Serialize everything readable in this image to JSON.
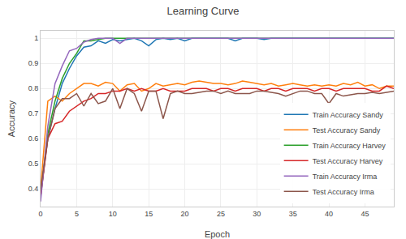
{
  "chart_data": {
    "type": "line",
    "title": "Learning Curve",
    "x_label": "Epoch",
    "y_label": "Accuracy",
    "x": [
      0,
      1,
      2,
      3,
      4,
      5,
      6,
      7,
      8,
      9,
      10,
      11,
      12,
      13,
      14,
      15,
      16,
      17,
      18,
      19,
      20,
      21,
      22,
      23,
      24,
      25,
      26,
      27,
      28,
      29,
      30,
      31,
      32,
      33,
      34,
      35,
      36,
      37,
      38,
      39,
      40,
      41,
      42,
      43,
      44,
      45,
      46,
      47,
      48,
      49
    ],
    "xlim": [
      0,
      49
    ],
    "xticks": [
      0,
      5,
      10,
      15,
      20,
      25,
      30,
      35,
      40,
      45
    ],
    "ylim": [
      0.33,
      1.03
    ],
    "yticks": [
      0.4,
      0.5,
      0.6,
      0.7,
      0.8,
      0.9,
      1
    ],
    "grid": true,
    "legend": "lower right",
    "series": [
      {
        "name": "Train Accuracy Sandy",
        "color": "#1f77b4",
        "values": [
          0.38,
          0.6,
          0.72,
          0.82,
          0.88,
          0.93,
          0.965,
          0.97,
          0.99,
          0.98,
          0.995,
          0.99,
          0.995,
          1,
          0.99,
          0.97,
          0.995,
          1,
          0.995,
          1,
          0.99,
          1,
          1,
          1,
          1,
          1,
          1,
          0.99,
          1,
          1,
          1,
          0.995,
          1,
          1,
          1,
          1,
          1,
          1,
          1,
          1,
          1,
          1,
          1,
          1,
          1,
          1,
          1,
          1,
          1,
          1
        ]
      },
      {
        "name": "Test Accuracy Sandy",
        "color": "#ff7f0e",
        "values": [
          0.4,
          0.75,
          0.77,
          0.75,
          0.78,
          0.8,
          0.82,
          0.82,
          0.81,
          0.825,
          0.82,
          0.79,
          0.815,
          0.82,
          0.79,
          0.8,
          0.82,
          0.81,
          0.815,
          0.82,
          0.815,
          0.825,
          0.83,
          0.825,
          0.82,
          0.82,
          0.815,
          0.82,
          0.83,
          0.825,
          0.82,
          0.815,
          0.82,
          0.81,
          0.815,
          0.82,
          0.815,
          0.81,
          0.815,
          0.81,
          0.815,
          0.81,
          0.82,
          0.815,
          0.825,
          0.81,
          0.815,
          0.8,
          0.81,
          0.81
        ]
      },
      {
        "name": "Train Accuracy Harvey",
        "color": "#2ca02c",
        "values": [
          0.37,
          0.62,
          0.75,
          0.84,
          0.9,
          0.94,
          0.99,
          0.99,
          0.995,
          1,
          1,
          1,
          1,
          1,
          1,
          1,
          1,
          1,
          1,
          1,
          1,
          1,
          1,
          1,
          1,
          1,
          1,
          1,
          1,
          1,
          1,
          1,
          1,
          1,
          1,
          1,
          1,
          1,
          1,
          1,
          1,
          1,
          1,
          1,
          1,
          1,
          1,
          1,
          1,
          1
        ]
      },
      {
        "name": "Test Accuracy Harvey",
        "color": "#d62728",
        "values": [
          0.37,
          0.6,
          0.66,
          0.67,
          0.71,
          0.73,
          0.75,
          0.76,
          0.78,
          0.78,
          0.79,
          0.79,
          0.8,
          0.79,
          0.8,
          0.79,
          0.79,
          0.8,
          0.79,
          0.79,
          0.79,
          0.8,
          0.8,
          0.8,
          0.79,
          0.8,
          0.8,
          0.79,
          0.8,
          0.8,
          0.8,
          0.79,
          0.8,
          0.8,
          0.79,
          0.8,
          0.8,
          0.8,
          0.79,
          0.8,
          0.8,
          0.79,
          0.8,
          0.8,
          0.8,
          0.8,
          0.79,
          0.79,
          0.81,
          0.8
        ]
      },
      {
        "name": "Train Accuracy Irma",
        "color": "#9467bd",
        "values": [
          0.35,
          0.65,
          0.82,
          0.89,
          0.95,
          0.96,
          0.985,
          0.995,
          1,
          1,
          1,
          0.98,
          1,
          1,
          1,
          1,
          1,
          1,
          1,
          1,
          1,
          1,
          1,
          1,
          1,
          1,
          1,
          1,
          1,
          1,
          1,
          1,
          1,
          1,
          1,
          1,
          1,
          1,
          1,
          1,
          1,
          1,
          1,
          1,
          1,
          1,
          1,
          1,
          1,
          1
        ]
      },
      {
        "name": "Test Accuracy Irma",
        "color": "#8c564b",
        "values": [
          0.4,
          0.6,
          0.72,
          0.76,
          0.76,
          0.78,
          0.73,
          0.78,
          0.74,
          0.75,
          0.8,
          0.72,
          0.8,
          0.78,
          0.71,
          0.79,
          0.79,
          0.68,
          0.78,
          0.79,
          0.78,
          0.78,
          0.785,
          0.79,
          0.79,
          0.78,
          0.79,
          0.78,
          0.78,
          0.78,
          0.79,
          0.79,
          0.785,
          0.78,
          0.77,
          0.78,
          0.79,
          0.79,
          0.78,
          0.78,
          0.74,
          0.78,
          0.77,
          0.775,
          0.78,
          0.78,
          0.785,
          0.78,
          0.785,
          0.79
        ]
      }
    ]
  }
}
